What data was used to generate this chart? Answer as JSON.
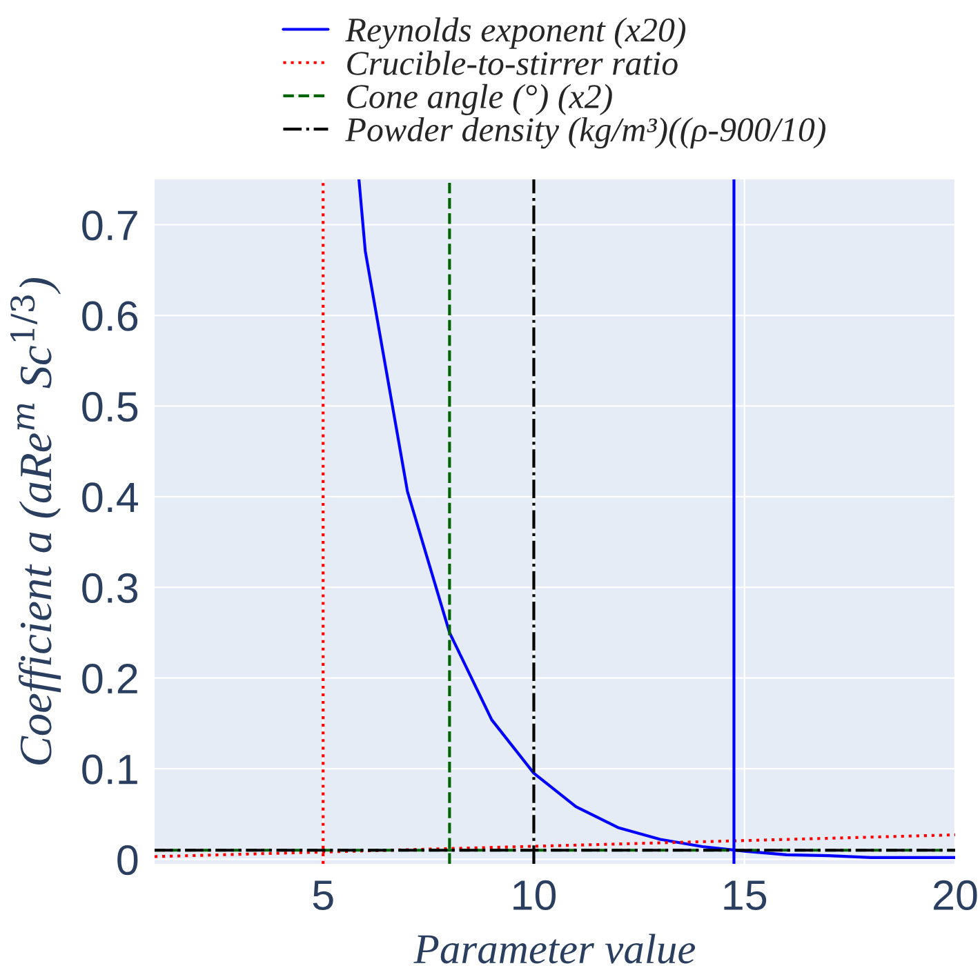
{
  "chart_data": {
    "type": "line",
    "xlabel": "Parameter value",
    "ylabel": "Coefficient a (aRe$^{m}$ Sc$^{1/3}$)",
    "xlim": [
      1,
      20
    ],
    "ylim": [
      -0.005,
      0.75
    ],
    "xticks": [
      5,
      10,
      15,
      20
    ],
    "yticks": [
      0,
      0.1,
      0.2,
      0.3,
      0.4,
      0.5,
      0.6,
      0.7
    ],
    "grid": true,
    "legend": "top",
    "series": [
      {
        "name": "Reynolds exponent (x20)",
        "color": "#0000ff",
        "line_style": "solid",
        "x": [
          5.85,
          6,
          7,
          8,
          9,
          10,
          11,
          12,
          13,
          14,
          15,
          16,
          17,
          18,
          19,
          20
        ],
        "values": [
          0.75,
          0.671,
          0.406,
          0.25,
          0.154,
          0.095,
          0.058,
          0.035,
          0.022,
          0.014,
          0.009,
          0.005,
          0.004,
          0.002,
          0.002,
          0.002
        ]
      },
      {
        "name": "Crucible-to-stirrer ratio",
        "color": "#ff0000",
        "line_style": "dotted",
        "x": [
          1,
          20
        ],
        "values": [
          0.003,
          0.027
        ]
      },
      {
        "name": "Cone angle (°) (x2)",
        "color": "#006400",
        "line_style": "dashed",
        "x": [
          1,
          20
        ],
        "values": [
          0.01,
          0.01
        ]
      },
      {
        "name": "Powder density (kg/m³)((ρ-900/10)",
        "color": "#000000",
        "line_style": "dashdot",
        "x": [
          1,
          20
        ],
        "values": [
          0.01,
          0.01
        ]
      }
    ],
    "ref_lines": [
      {
        "axis": "x",
        "value": 14.75,
        "color": "#0000ff",
        "line_style": "solid"
      },
      {
        "axis": "x",
        "value": 5,
        "color": "#ff0000",
        "line_style": "dotted"
      },
      {
        "axis": "x",
        "value": 8,
        "color": "#006400",
        "line_style": "dashed"
      },
      {
        "axis": "x",
        "value": 10,
        "color": "#000000",
        "line_style": "dashdot"
      }
    ]
  }
}
